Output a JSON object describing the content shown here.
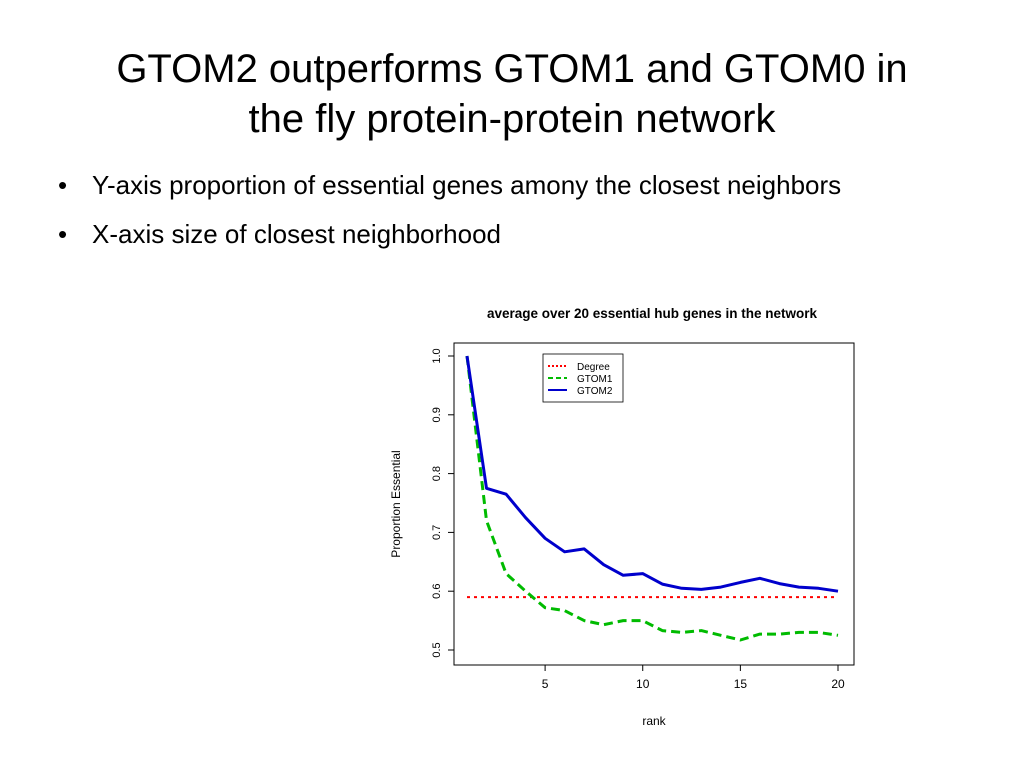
{
  "slide": {
    "title_line1": "GTOM2 outperforms GTOM1 and GTOM0 in",
    "title_line2": "the fly protein-protein network",
    "bullets": [
      "Y-axis proportion of essential genes amony the closest neighbors",
      "X-axis size of closest neighborhood"
    ],
    "bullet_char": "•"
  },
  "chart_data": {
    "type": "line",
    "title": "average over 20 essential hub genes  in the network",
    "xlabel": "rank",
    "ylabel": "Proportion Essential",
    "xlim": [
      1,
      20
    ],
    "ylim": [
      0.5,
      1.0
    ],
    "xticks": [
      5,
      10,
      15,
      20
    ],
    "yticks": [
      0.5,
      0.6,
      0.7,
      0.8,
      0.9,
      1.0
    ],
    "ytick_labels": [
      "0.5",
      "0.6",
      "0.7",
      "0.8",
      "0.9",
      "1.0"
    ],
    "grid": false,
    "legend_position": "top-center",
    "x": [
      1,
      2,
      3,
      4,
      5,
      6,
      7,
      8,
      9,
      10,
      11,
      12,
      13,
      14,
      15,
      16,
      17,
      18,
      19,
      20
    ],
    "series": [
      {
        "name": "Degree",
        "color": "#ff0000",
        "style": "dotted",
        "values": [
          0.59,
          0.59,
          0.59,
          0.59,
          0.59,
          0.59,
          0.59,
          0.59,
          0.59,
          0.59,
          0.59,
          0.59,
          0.59,
          0.59,
          0.59,
          0.59,
          0.59,
          0.59,
          0.59,
          0.59
        ]
      },
      {
        "name": "GTOM1",
        "color": "#00bb00",
        "style": "dashed",
        "values": [
          1.0,
          0.72,
          0.63,
          0.6,
          0.572,
          0.567,
          0.55,
          0.543,
          0.55,
          0.55,
          0.533,
          0.53,
          0.533,
          0.525,
          0.517,
          0.527,
          0.527,
          0.53,
          0.53,
          0.525
        ]
      },
      {
        "name": "GTOM2",
        "color": "#0000cc",
        "style": "solid",
        "values": [
          1.0,
          0.775,
          0.765,
          0.725,
          0.69,
          0.667,
          0.672,
          0.645,
          0.627,
          0.63,
          0.612,
          0.605,
          0.603,
          0.607,
          0.615,
          0.622,
          0.613,
          0.607,
          0.605,
          0.6
        ]
      }
    ]
  }
}
